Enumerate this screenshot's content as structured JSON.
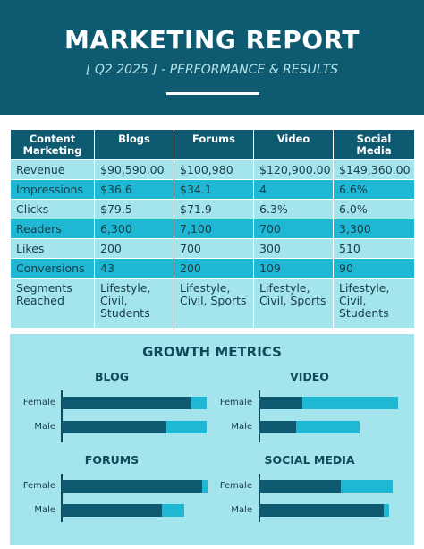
{
  "header": {
    "title": "MARKETING REPORT",
    "subtitle": "[ Q2 2025 ] - PERFORMANCE & RESULTS"
  },
  "table": {
    "headers": [
      "Content Marketing",
      "Blogs",
      "Forums",
      "Video",
      "Social Media"
    ],
    "rows": [
      [
        "Revenue",
        "$90,590.00",
        "$100,980",
        "$120,900.00",
        "$149,360.00"
      ],
      [
        "Impressions",
        "$36.6",
        "$34.1",
        "4",
        "6.6%"
      ],
      [
        "Clicks",
        "$79.5",
        "$71.9",
        "6.3%",
        "6.0%"
      ],
      [
        "Readers",
        "6,300",
        "7,100",
        "700",
        "3,300"
      ],
      [
        "Likes",
        "200",
        "700",
        "300",
        "510"
      ],
      [
        "Conversions",
        "43",
        "200",
        "109",
        "90"
      ],
      [
        "Segments Reached",
        "Lifestyle, Civil, Students",
        "Lifestyle, Civil, Sports",
        "Lifestyle, Civil, Sports",
        "Lifestyle, Civil, Students"
      ]
    ]
  },
  "growth": {
    "title": "GROWTH METRICS",
    "colors": {
      "dark": "#0e5a70",
      "light": "#1fb8d4"
    }
  },
  "chart_data": [
    {
      "type": "bar",
      "title": "BLOG",
      "categories": [
        "Female",
        "Male"
      ],
      "series": [
        {
          "values": [
            0.88,
            0.71
          ]
        },
        {
          "values": [
            0.98,
            0.98
          ]
        }
      ]
    },
    {
      "type": "bar",
      "title": "VIDEO",
      "categories": [
        "Female",
        "Male"
      ],
      "series": [
        {
          "values": [
            0.29,
            0.25
          ]
        },
        {
          "values": [
            0.94,
            0.68
          ]
        }
      ]
    },
    {
      "type": "bar",
      "title": "FORUMS",
      "categories": [
        "Female",
        "Male"
      ],
      "series": [
        {
          "values": [
            0.95,
            0.68
          ]
        },
        {
          "values": [
            0.99,
            0.83
          ]
        }
      ]
    },
    {
      "type": "bar",
      "title": "SOCIAL MEDIA",
      "categories": [
        "Female",
        "Male"
      ],
      "series": [
        {
          "values": [
            0.55,
            0.84
          ]
        },
        {
          "values": [
            0.9,
            0.88
          ]
        }
      ]
    }
  ]
}
